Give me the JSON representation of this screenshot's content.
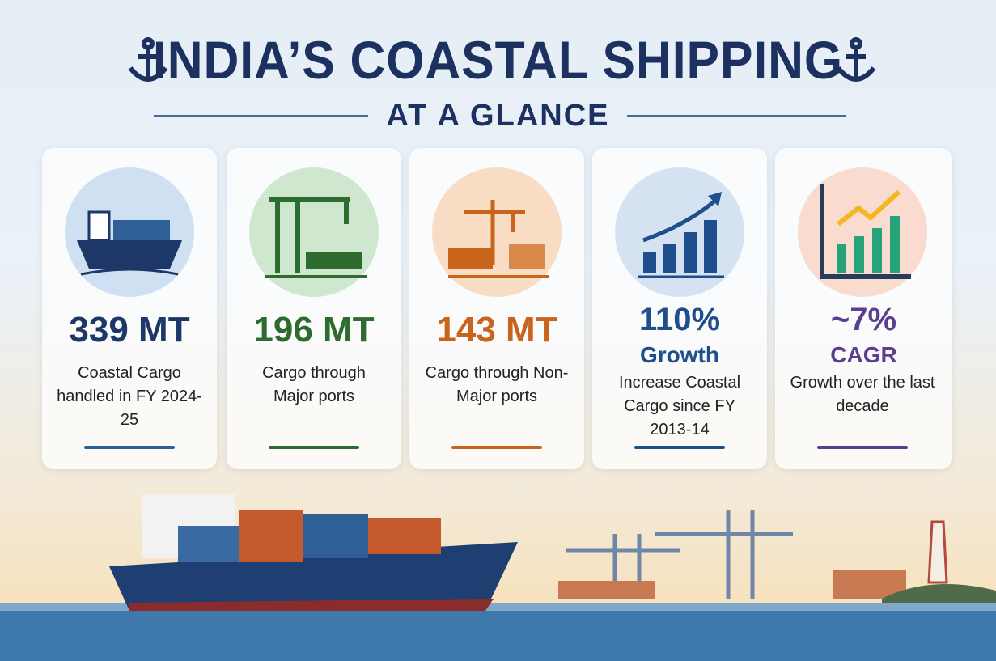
{
  "header": {
    "title": "INDIA’S COASTAL SHIPPING",
    "subtitle": "AT A GLANCE"
  },
  "cards": [
    {
      "value": "339 MT",
      "description": "Coastal Cargo handled in FY 2024-25"
    },
    {
      "value": "196 MT",
      "description": "Cargo through Major ports"
    },
    {
      "value": "143 MT",
      "description": "Cargo through Non-Major ports"
    },
    {
      "value": "110%",
      "unit": "Growth",
      "description": "Increase Coastal Cargo since FY 2013-14"
    },
    {
      "value": "~7%",
      "unit": "CAGR",
      "description": "Growth over the last decade"
    }
  ]
}
